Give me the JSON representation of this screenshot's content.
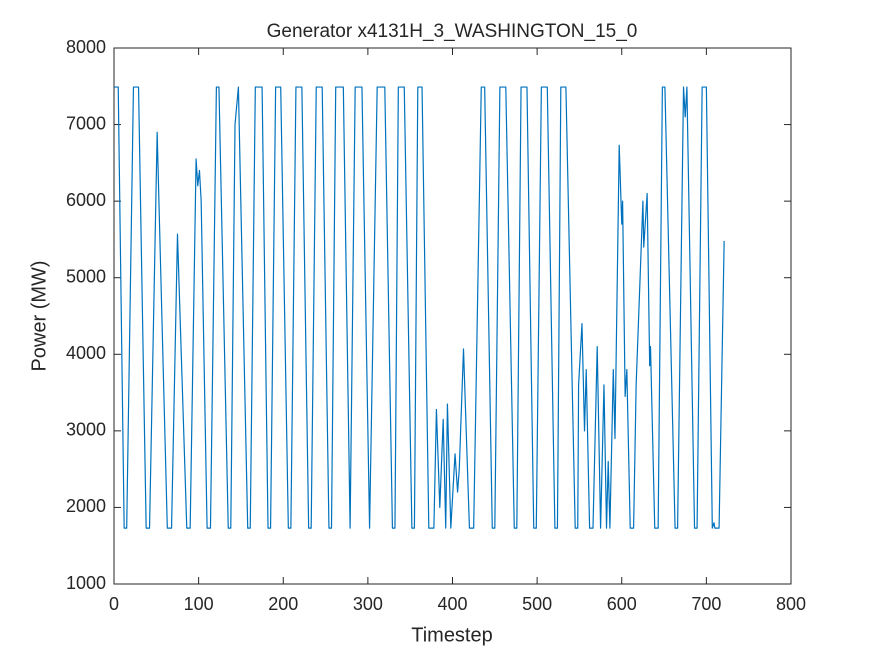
{
  "chart_data": {
    "type": "line",
    "title": "Generator x4131H_3_WASHINGTON_15_0",
    "xlabel": "Timestep",
    "ylabel": "Power (MW)",
    "xlim": [
      0,
      800
    ],
    "xticks": [
      0,
      100,
      200,
      300,
      400,
      500,
      600,
      700,
      800
    ],
    "ylim": [
      1000,
      8000
    ],
    "yticks": [
      1000,
      2000,
      3000,
      4000,
      5000,
      6000,
      7000,
      8000
    ],
    "grid": false,
    "series": [
      {
        "name": "Power",
        "color": "#0072BD",
        "x": [
          0,
          5,
          12,
          15,
          23,
          29,
          38,
          42,
          51,
          63,
          68,
          75,
          86,
          90,
          97,
          99,
          101,
          103,
          110,
          114,
          121,
          124,
          135,
          138,
          143,
          147,
          158,
          161,
          167,
          175,
          182,
          185,
          191,
          197,
          206,
          209,
          215,
          222,
          230,
          233,
          239,
          246,
          254,
          257,
          262,
          271,
          279,
          285,
          293,
          302,
          311,
          320,
          329,
          332,
          336,
          343,
          352,
          355,
          359,
          364,
          372,
          378,
          381,
          385,
          389,
          392,
          394,
          398,
          403,
          406,
          408,
          413,
          420,
          425,
          434,
          438,
          447,
          450,
          456,
          463,
          473,
          476,
          481,
          488,
          496,
          499,
          505,
          512,
          521,
          524,
          528,
          534,
          545,
          548,
          549,
          553,
          556,
          558,
          562,
          566,
          571,
          575,
          579,
          582,
          584,
          586,
          590,
          592,
          597,
          600,
          601,
          604,
          606,
          610,
          614,
          617,
          625,
          626,
          630,
          633,
          634,
          639,
          643,
          648,
          651,
          663,
          666,
          673,
          675,
          677,
          686,
          689,
          695,
          700,
          707,
          709,
          710,
          715,
          721
        ],
        "values": [
          7490,
          7490,
          1730,
          1730,
          7490,
          7490,
          1730,
          1730,
          6900,
          1730,
          1730,
          5570,
          1730,
          1730,
          6550,
          6200,
          6400,
          6000,
          1730,
          1730,
          7490,
          7490,
          1730,
          1730,
          7000,
          7490,
          1730,
          1730,
          7490,
          7490,
          1730,
          1730,
          7490,
          7490,
          1730,
          1730,
          7490,
          7490,
          1730,
          1730,
          7490,
          7490,
          1730,
          1730,
          7490,
          7490,
          1730,
          7490,
          7490,
          1730,
          7490,
          7490,
          1730,
          1730,
          7490,
          7490,
          1730,
          1730,
          7490,
          7490,
          1730,
          1730,
          3280,
          2000,
          3150,
          1730,
          3350,
          1730,
          2700,
          2200,
          2500,
          4070,
          1730,
          1730,
          7490,
          7490,
          1730,
          1730,
          7490,
          7490,
          1730,
          1730,
          7490,
          7490,
          1730,
          1730,
          7490,
          7490,
          1730,
          1730,
          7490,
          7490,
          1730,
          1730,
          3600,
          4400,
          3000,
          3800,
          1730,
          1730,
          4100,
          1730,
          3600,
          1730,
          2600,
          1730,
          3800,
          2900,
          6730,
          5700,
          6000,
          3450,
          3800,
          1730,
          1730,
          3600,
          6000,
          5400,
          6100,
          3850,
          4100,
          1730,
          1730,
          7490,
          7490,
          1730,
          1730,
          7490,
          7100,
          7490,
          1730,
          1730,
          7490,
          7490,
          1730,
          1800,
          1730,
          1730,
          5480
        ]
      }
    ]
  }
}
